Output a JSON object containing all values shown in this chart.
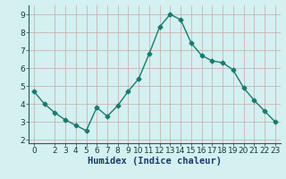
{
  "x": [
    0,
    1,
    2,
    3,
    4,
    5,
    6,
    7,
    8,
    9,
    10,
    11,
    12,
    13,
    14,
    15,
    16,
    17,
    18,
    19,
    20,
    21,
    22,
    23
  ],
  "y": [
    4.7,
    4.0,
    3.5,
    3.1,
    2.8,
    2.5,
    3.8,
    3.3,
    3.9,
    4.7,
    5.4,
    6.8,
    8.3,
    9.0,
    8.7,
    7.4,
    6.7,
    6.4,
    6.3,
    5.9,
    4.9,
    4.2,
    3.6,
    3.0
  ],
  "line_color": "#1a7a6e",
  "bg_color": "#d4f0f0",
  "grid_color": "#c8a8a8",
  "xlabel": "Humidex (Indice chaleur)",
  "ylim": [
    1.8,
    9.5
  ],
  "xlim": [
    -0.5,
    23.5
  ],
  "yticks": [
    2,
    3,
    4,
    5,
    6,
    7,
    8,
    9
  ],
  "xticks": [
    0,
    2,
    3,
    4,
    5,
    6,
    7,
    8,
    9,
    10,
    11,
    12,
    13,
    14,
    15,
    16,
    17,
    18,
    19,
    20,
    21,
    22,
    23
  ],
  "xlabel_color": "#1a3a6e",
  "xlabel_fontsize": 7.5,
  "tick_fontsize": 6.5,
  "marker_size": 2.5,
  "line_width": 1.0
}
